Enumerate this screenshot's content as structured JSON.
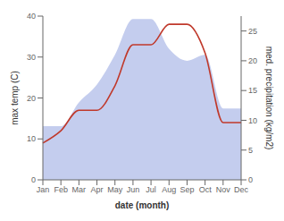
{
  "chart_data": {
    "type": "line",
    "categories": [
      "Jan",
      "Feb",
      "Mar",
      "Apr",
      "May",
      "Jun",
      "Jul",
      "Aug",
      "Sep",
      "Oct",
      "Nov",
      "Dec"
    ],
    "series": [
      {
        "type": "area",
        "axis": "y2",
        "color": "#b0bce8",
        "values": [
          9,
          9,
          13,
          16,
          21,
          27,
          27,
          22,
          20,
          21,
          12,
          12
        ]
      },
      {
        "type": "line",
        "color": "#c0392b",
        "values": [
          9,
          12,
          17,
          17,
          23,
          33,
          33,
          38,
          38,
          31,
          14,
          14
        ]
      }
    ],
    "xlabel": "date (month)",
    "ylabel": "max temp (C)",
    "y2label": "med. precipitation (kg/m2)",
    "ylim": [
      0,
      40
    ],
    "yticks": [
      0,
      10,
      20,
      30,
      40
    ],
    "y2lim": [
      0,
      27.5
    ],
    "y2ticks": [
      0,
      5,
      10,
      15,
      20,
      25
    ],
    "grid": false
  }
}
